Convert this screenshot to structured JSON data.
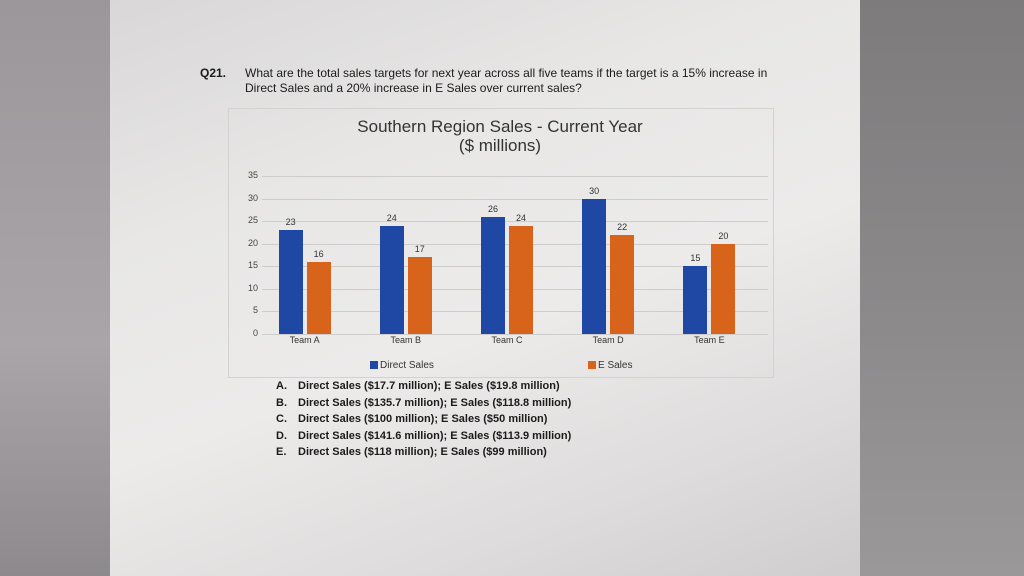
{
  "question": {
    "number": "Q21.",
    "text": "What are the total sales targets for next year across all five teams if the target is a 15% increase in Direct Sales and a 20% increase in E Sales over current sales?"
  },
  "chart_data": {
    "type": "bar",
    "title": "Southern Region Sales - Current Year",
    "subtitle": "($ millions)",
    "categories": [
      "Team A",
      "Team B",
      "Team C",
      "Team D",
      "Team E"
    ],
    "series": [
      {
        "name": "Direct Sales",
        "color": "#1f48a4",
        "values": [
          23,
          24,
          26,
          30,
          15
        ]
      },
      {
        "name": "E Sales",
        "color": "#d8641c",
        "values": [
          16,
          17,
          24,
          22,
          20
        ]
      }
    ],
    "xlabel": "",
    "ylabel": "",
    "ylim": [
      0,
      35
    ],
    "yticks": [
      0,
      5,
      10,
      15,
      20,
      25,
      30,
      35
    ],
    "grid": true,
    "legend_position": "bottom",
    "data_labels": true
  },
  "legend": {
    "direct": "Direct Sales",
    "esales": "E Sales"
  },
  "options": [
    {
      "letter": "A.",
      "text": "Direct Sales ($17.7 million); E Sales ($19.8 million)"
    },
    {
      "letter": "B.",
      "text": "Direct Sales ($135.7 million); E Sales ($118.8 million)"
    },
    {
      "letter": "C.",
      "text": "Direct Sales ($100 million); E Sales ($50 million)"
    },
    {
      "letter": "D.",
      "text": "Direct Sales ($141.6 million); E Sales ($113.9 million)"
    },
    {
      "letter": "E.",
      "text": "Direct Sales ($118 million); E Sales ($99 million)"
    }
  ]
}
